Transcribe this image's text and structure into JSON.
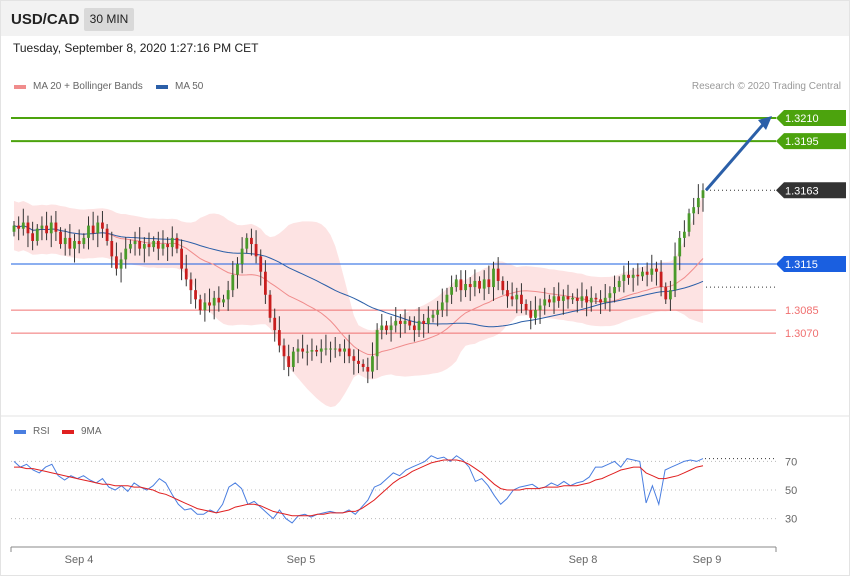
{
  "header": {
    "symbol": "USD/CAD",
    "timeframe": "30 MIN",
    "timestamp": "Tuesday, September 8, 2020 1:27:16 PM CET"
  },
  "legend_top": [
    {
      "label": "MA 20 + Bollinger Bands",
      "color": "#f08c8c"
    },
    {
      "label": "MA 50",
      "color": "#2b5fa8"
    }
  ],
  "credit": "Research © 2020 Trading Central",
  "legend_rsi": [
    {
      "label": "RSI",
      "color": "#4a7ee0"
    },
    {
      "label": "9MA",
      "color": "#e02020"
    }
  ],
  "colors": {
    "resistance": "#4ca30d",
    "support": "#f07070",
    "pivot": "#1a5fe0",
    "last_price": "#333333",
    "arrow": "#2b5fa8",
    "candle_up": "#4a9a2a",
    "candle_down": "#c81e1e"
  },
  "chart_data": [
    {
      "type": "candlestick",
      "x_ticks": [
        "Sep 4",
        "Sep 5",
        "Sep 8",
        "Sep 9"
      ],
      "price_levels": [
        {
          "value": 1.321,
          "label": "1.3210",
          "kind": "resistance"
        },
        {
          "value": 1.3195,
          "label": "1.3195",
          "kind": "resistance"
        },
        {
          "value": 1.3163,
          "label": "1.3163",
          "kind": "last"
        },
        {
          "value": 1.3115,
          "label": "1.3115",
          "kind": "pivot"
        },
        {
          "value": 1.3085,
          "label": "1.3085",
          "kind": "support"
        },
        {
          "value": 1.307,
          "label": "1.3070",
          "kind": "support"
        }
      ],
      "ylim": [
        1.302,
        1.3225
      ],
      "closes": [
        1.314,
        1.3138,
        1.3142,
        1.3135,
        1.313,
        1.3138,
        1.314,
        1.3135,
        1.3142,
        1.3136,
        1.3128,
        1.3132,
        1.3125,
        1.313,
        1.3128,
        1.3132,
        1.314,
        1.3135,
        1.3142,
        1.3138,
        1.313,
        1.312,
        1.3112,
        1.3118,
        1.3125,
        1.3128,
        1.313,
        1.3125,
        1.3128,
        1.3126,
        1.313,
        1.3125,
        1.3128,
        1.3126,
        1.3132,
        1.3125,
        1.3112,
        1.3105,
        1.3098,
        1.3092,
        1.3085,
        1.309,
        1.3088,
        1.3093,
        1.309,
        1.3092,
        1.3098,
        1.3108,
        1.3115,
        1.3125,
        1.3132,
        1.3128,
        1.312,
        1.311,
        1.3095,
        1.308,
        1.3072,
        1.3062,
        1.3055,
        1.3048,
        1.3058,
        1.306,
        1.3058,
        1.3058,
        1.3059,
        1.3058,
        1.306,
        1.306,
        1.306,
        1.306,
        1.3058,
        1.306,
        1.3055,
        1.3052,
        1.305,
        1.3048,
        1.3045,
        1.3055,
        1.3072,
        1.3075,
        1.3072,
        1.3075,
        1.3078,
        1.3076,
        1.3078,
        1.3075,
        1.3072,
        1.3078,
        1.3076,
        1.308,
        1.3082,
        1.3085,
        1.309,
        1.3095,
        1.31,
        1.3105,
        1.3098,
        1.3102,
        1.31,
        1.3104,
        1.3099,
        1.3105,
        1.31,
        1.3112,
        1.3104,
        1.3098,
        1.3094,
        1.3092,
        1.3095,
        1.3089,
        1.3085,
        1.308,
        1.3085,
        1.3088,
        1.3092,
        1.309,
        1.3094,
        1.3091,
        1.3094,
        1.3092,
        1.3093,
        1.3091,
        1.3094,
        1.309,
        1.3093,
        1.3092,
        1.309,
        1.3093,
        1.3096,
        1.31,
        1.3104,
        1.3108,
        1.3106,
        1.3108,
        1.3107,
        1.311,
        1.3108,
        1.3112,
        1.311,
        1.31,
        1.3092,
        1.3098,
        1.312,
        1.3132,
        1.3136,
        1.3148,
        1.3152,
        1.3158,
        1.3163
      ]
    },
    {
      "type": "line",
      "title": "RSI",
      "x_ticks": [
        "Sep 4",
        "Sep 5",
        "Sep 8",
        "Sep 9"
      ],
      "y_ticks": [
        70,
        50,
        30
      ],
      "ylim": [
        15,
        85
      ],
      "series": [
        {
          "name": "RSI",
          "values": [
            70,
            66,
            68,
            64,
            62,
            66,
            68,
            60,
            57,
            60,
            58,
            60,
            57,
            55,
            58,
            52,
            50,
            53,
            49,
            55,
            52,
            50,
            53,
            58,
            55,
            47,
            40,
            36,
            37,
            33,
            33,
            36,
            34,
            40,
            52,
            55,
            51,
            40,
            42,
            38,
            34,
            30,
            36,
            30,
            27,
            32,
            33,
            31,
            33,
            34,
            35,
            34,
            34,
            36,
            33,
            38,
            43,
            52,
            54,
            58,
            62,
            60,
            64,
            66,
            68,
            70,
            74,
            72,
            73,
            70,
            74,
            71,
            66,
            56,
            58,
            53,
            46,
            40,
            44,
            50,
            52,
            53,
            54,
            51,
            52,
            55,
            53,
            56,
            53,
            55,
            56,
            59,
            66,
            66,
            68,
            70,
            66,
            72,
            71,
            70,
            41,
            53,
            40,
            64,
            66,
            68,
            70,
            71,
            70,
            72
          ]
        },
        {
          "name": "9MA",
          "values": [
            66,
            66,
            65,
            65,
            64,
            63,
            62,
            61,
            60,
            59,
            58,
            57,
            56,
            55,
            54,
            54,
            53,
            53,
            53,
            52,
            52,
            51,
            50,
            48,
            47,
            45,
            43,
            41,
            39,
            37,
            36,
            35,
            34,
            35,
            36,
            38,
            39,
            40,
            40,
            39,
            37,
            35,
            34,
            33,
            32,
            32,
            32,
            32,
            33,
            33,
            34,
            34,
            34,
            35,
            35,
            37,
            40,
            43,
            47,
            51,
            55,
            58,
            60,
            63,
            65,
            67,
            69,
            70,
            71,
            71,
            71,
            70,
            68,
            65,
            62,
            58,
            54,
            51,
            50,
            50,
            50,
            51,
            51,
            51,
            52,
            52,
            52,
            53,
            53,
            53,
            54,
            55,
            57,
            58,
            60,
            62,
            64,
            65,
            66,
            66,
            62,
            60,
            58,
            58,
            59,
            60,
            62,
            64,
            66,
            67
          ]
        }
      ]
    }
  ]
}
